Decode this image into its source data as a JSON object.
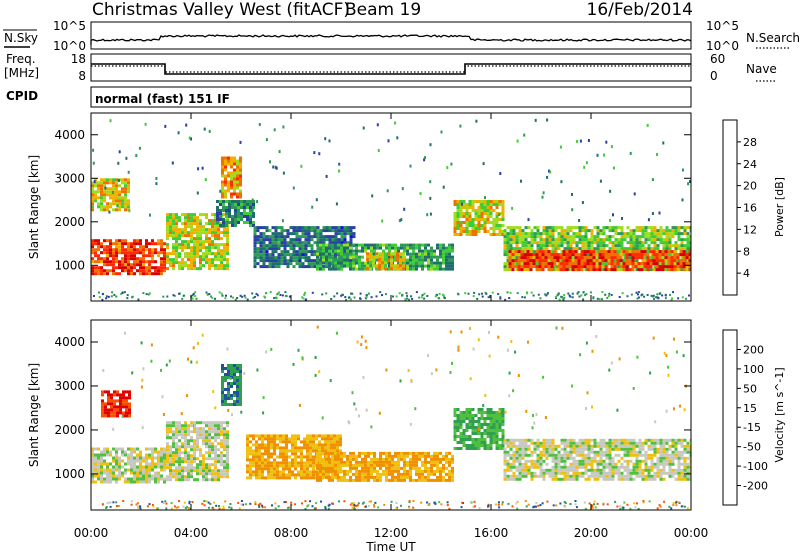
{
  "header": {
    "station": "Christmas Valley West (fitACF)",
    "beam": "Beam 19",
    "date": "16/Feb/2014"
  },
  "noise_panel": {
    "left_label": "N.Sky",
    "left_ticks": [
      "10^5",
      "10^0"
    ],
    "right_label": "N.Search",
    "right_ticks": [
      "10^5",
      "10^0"
    ]
  },
  "freq_panel": {
    "left_label_1": "Freq.",
    "left_label_2": "[MHz]",
    "left_ticks": [
      "18",
      "8"
    ],
    "right_label": "Nave",
    "right_ticks": [
      "60",
      "0"
    ]
  },
  "cpid": {
    "label": "CPID",
    "value": "normal (fast) 151 IF"
  },
  "colors": {
    "power_scale": [
      "#1010e0",
      "#2a3fa8",
      "#1f6e6e",
      "#2e9a55",
      "#3fcc35",
      "#a0dc20",
      "#f0b000",
      "#f07000",
      "#ff2a00",
      "#d80000"
    ],
    "velocity_scale": [
      "#e00000",
      "#f85000",
      "#f09000",
      "#f0c010",
      "#c8c8c0",
      "#c8c8c0",
      "#50c040",
      "#30a050",
      "#2050a0",
      "#1010c0"
    ]
  },
  "chart_data": [
    {
      "type": "heatmap",
      "name": "power-panel",
      "xlabel": "Time UT",
      "ylabel": "Slant Range [km]",
      "x_ticks": [
        "00:00",
        "04:00",
        "08:00",
        "12:00",
        "16:00",
        "20:00",
        "00:00"
      ],
      "xlim_hours": [
        0,
        24
      ],
      "ylim": [
        180,
        4500
      ],
      "y_ticks": [
        1000,
        2000,
        3000,
        4000
      ],
      "colorbar_label": "Power [dB]",
      "colorbar_ticks": [
        4,
        8,
        12,
        16,
        20,
        24,
        28
      ],
      "colorbar_range": [
        0,
        32
      ],
      "regions": [
        {
          "t0": 0.0,
          "t1": 3.0,
          "r0": 800,
          "r1": 1600,
          "value": 27
        },
        {
          "t0": 0.0,
          "t1": 1.5,
          "r0": 2300,
          "r1": 3000,
          "value": 20
        },
        {
          "t0": 3.0,
          "t1": 5.5,
          "r0": 900,
          "r1": 2200,
          "value": 18
        },
        {
          "t0": 5.2,
          "t1": 6.0,
          "r0": 2600,
          "r1": 3500,
          "value": 22
        },
        {
          "t0": 5.0,
          "t1": 6.5,
          "r0": 1900,
          "r1": 2500,
          "value": 10
        },
        {
          "t0": 6.5,
          "t1": 10.5,
          "r0": 1000,
          "r1": 1900,
          "value": 8
        },
        {
          "t0": 9.0,
          "t1": 14.5,
          "r0": 900,
          "r1": 1500,
          "value": 12
        },
        {
          "t0": 11.0,
          "t1": 12.5,
          "r0": 950,
          "r1": 1300,
          "value": 20
        },
        {
          "t0": 14.5,
          "t1": 16.5,
          "r0": 1700,
          "r1": 2500,
          "value": 19
        },
        {
          "t0": 16.5,
          "t1": 24.0,
          "r0": 900,
          "r1": 1900,
          "value": 16
        },
        {
          "t0": 16.7,
          "t1": 24.0,
          "r0": 900,
          "r1": 1350,
          "value": 27
        }
      ]
    },
    {
      "type": "heatmap",
      "name": "velocity-panel",
      "xlabel": "Time UT",
      "ylabel": "Slant Range [km]",
      "x_ticks": [
        "00:00",
        "04:00",
        "08:00",
        "12:00",
        "16:00",
        "20:00",
        "00:00"
      ],
      "xlim_hours": [
        0,
        24
      ],
      "ylim": [
        180,
        4500
      ],
      "y_ticks": [
        1000,
        2000,
        3000,
        4000
      ],
      "colorbar_label": "Velocity [m s^-1]",
      "colorbar_ticks": [
        200,
        100,
        50,
        15,
        -15,
        -50,
        -100,
        -200
      ],
      "regions": [
        {
          "t0": 0.0,
          "t1": 3.0,
          "r0": 800,
          "r1": 1600,
          "value": 0
        },
        {
          "t0": 0.4,
          "t1": 1.6,
          "r0": 2300,
          "r1": 2900,
          "value": -200
        },
        {
          "t0": 3.0,
          "t1": 5.5,
          "r0": 900,
          "r1": 2200,
          "value": 0
        },
        {
          "t0": 5.2,
          "t1": 6.0,
          "r0": 2600,
          "r1": 3500,
          "value": 100
        },
        {
          "t0": 6.2,
          "t1": 10.0,
          "r0": 900,
          "r1": 1900,
          "value": -50
        },
        {
          "t0": 9.0,
          "t1": 14.5,
          "r0": 850,
          "r1": 1500,
          "value": -50
        },
        {
          "t0": 14.5,
          "t1": 16.5,
          "r0": 1600,
          "r1": 2500,
          "value": 50
        },
        {
          "t0": 16.5,
          "t1": 24.0,
          "r0": 900,
          "r1": 1800,
          "value": 0
        }
      ]
    }
  ]
}
